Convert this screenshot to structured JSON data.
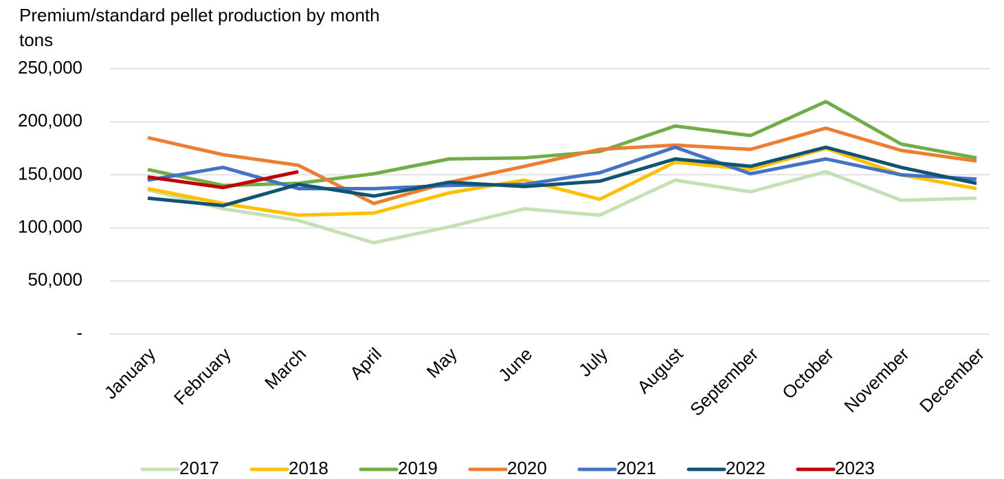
{
  "chart_data": {
    "type": "line",
    "title": "Premium/standard pellet production by month",
    "y_label": "tons",
    "categories": [
      "January",
      "February",
      "March",
      "April",
      "May",
      "June",
      "July",
      "August",
      "September",
      "October",
      "November",
      "December"
    ],
    "ylim": [
      0,
      250000
    ],
    "yticks": [
      {
        "value": 0,
        "label": "-"
      },
      {
        "value": 50000,
        "label": "50,000"
      },
      {
        "value": 100000,
        "label": "100,000"
      },
      {
        "value": 150000,
        "label": "150,000"
      },
      {
        "value": 200000,
        "label": "200,000"
      },
      {
        "value": 250000,
        "label": "250,000"
      }
    ],
    "grid": true,
    "legend": "bottom",
    "series": [
      {
        "name": "2017",
        "color": "#c5e0b4",
        "values": [
          136000,
          118000,
          107000,
          86000,
          101000,
          118000,
          112000,
          145000,
          134000,
          153000,
          126000,
          128000
        ]
      },
      {
        "name": "2018",
        "color": "#ffc000",
        "values": [
          137000,
          123000,
          112000,
          114000,
          133000,
          145000,
          127000,
          162000,
          155000,
          175000,
          150000,
          137000
        ]
      },
      {
        "name": "2019",
        "color": "#70ad47",
        "values": [
          155000,
          140000,
          142000,
          151000,
          165000,
          166000,
          172000,
          196000,
          187000,
          219000,
          179000,
          166000
        ]
      },
      {
        "name": "2020",
        "color": "#ed7d31",
        "values": [
          185000,
          169000,
          159000,
          123000,
          143000,
          158000,
          174000,
          178000,
          174000,
          194000,
          173000,
          163000
        ]
      },
      {
        "name": "2021",
        "color": "#4472c4",
        "values": [
          145000,
          157000,
          137000,
          137000,
          140000,
          141000,
          152000,
          176000,
          151000,
          165000,
          150000,
          146000
        ]
      },
      {
        "name": "2022",
        "color": "#0f5572",
        "values": [
          128000,
          121000,
          141000,
          130000,
          143000,
          139000,
          144000,
          165000,
          158000,
          176000,
          157000,
          142000
        ]
      },
      {
        "name": "2023",
        "color": "#c00000",
        "values": [
          148000,
          138000,
          153000,
          null,
          null,
          null,
          null,
          null,
          null,
          null,
          null,
          null
        ]
      }
    ]
  }
}
